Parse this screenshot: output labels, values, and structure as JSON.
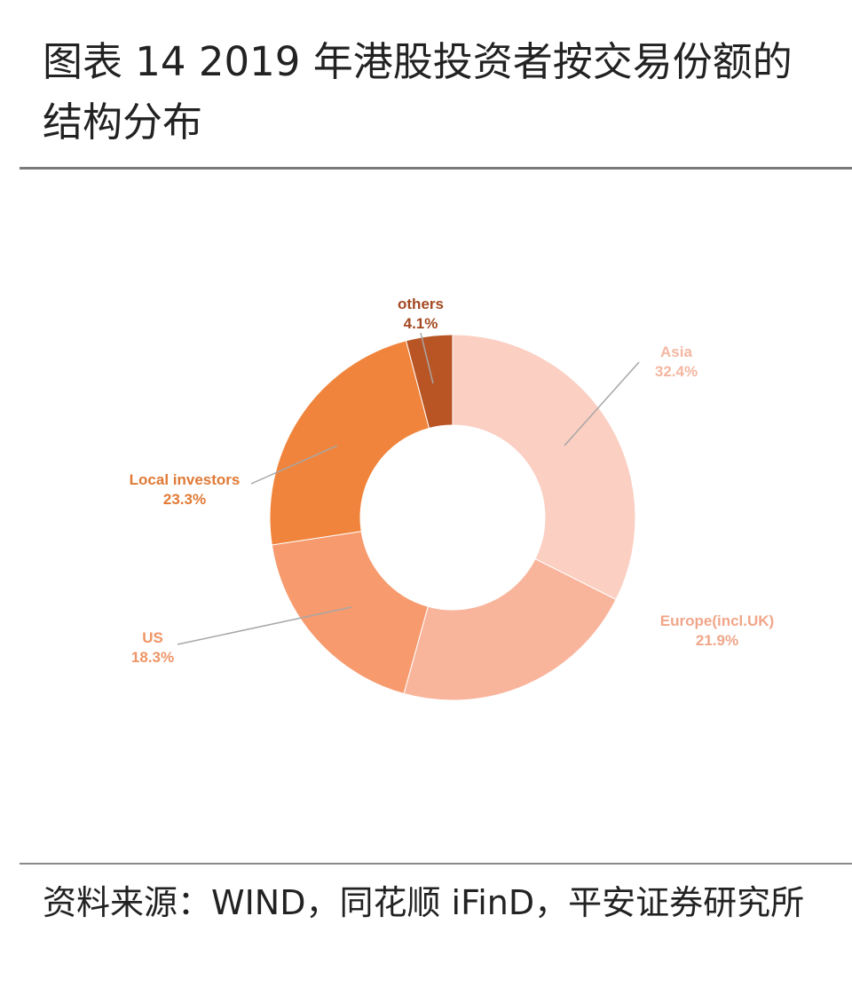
{
  "header": {
    "title": "图表 14  2019 年港股投资者按交易份额的结构分布"
  },
  "footer": {
    "source": "资料来源：WIND，同花顺 iFinD，平安证券研究所"
  },
  "colors": {
    "asia": "#fbcfc2",
    "europe": "#f9b59c",
    "us": "#f79a6e",
    "local": "#f0843c",
    "others": "#b95525",
    "asia_label": "#f4b7a2",
    "europe_label": "#f0a68a",
    "us_label": "#ef9566",
    "local_label": "#e07a36",
    "others_label": "#a44a22",
    "leader": "#a7a7a7"
  },
  "chart_data": {
    "type": "pie",
    "variant": "donut",
    "title": "",
    "start": "12 o'clock, clockwise",
    "slices": [
      {
        "name": "Asia",
        "value": 32.4,
        "label": "32.4%"
      },
      {
        "name": "Europe(incl.UK)",
        "value": 21.9,
        "label": "21.9%"
      },
      {
        "name": "US",
        "value": 18.3,
        "label": "18.3%"
      },
      {
        "name": "Local investors",
        "value": 23.3,
        "label": "23.3%"
      },
      {
        "name": "others",
        "value": 4.1,
        "label": "4.1%"
      }
    ]
  }
}
